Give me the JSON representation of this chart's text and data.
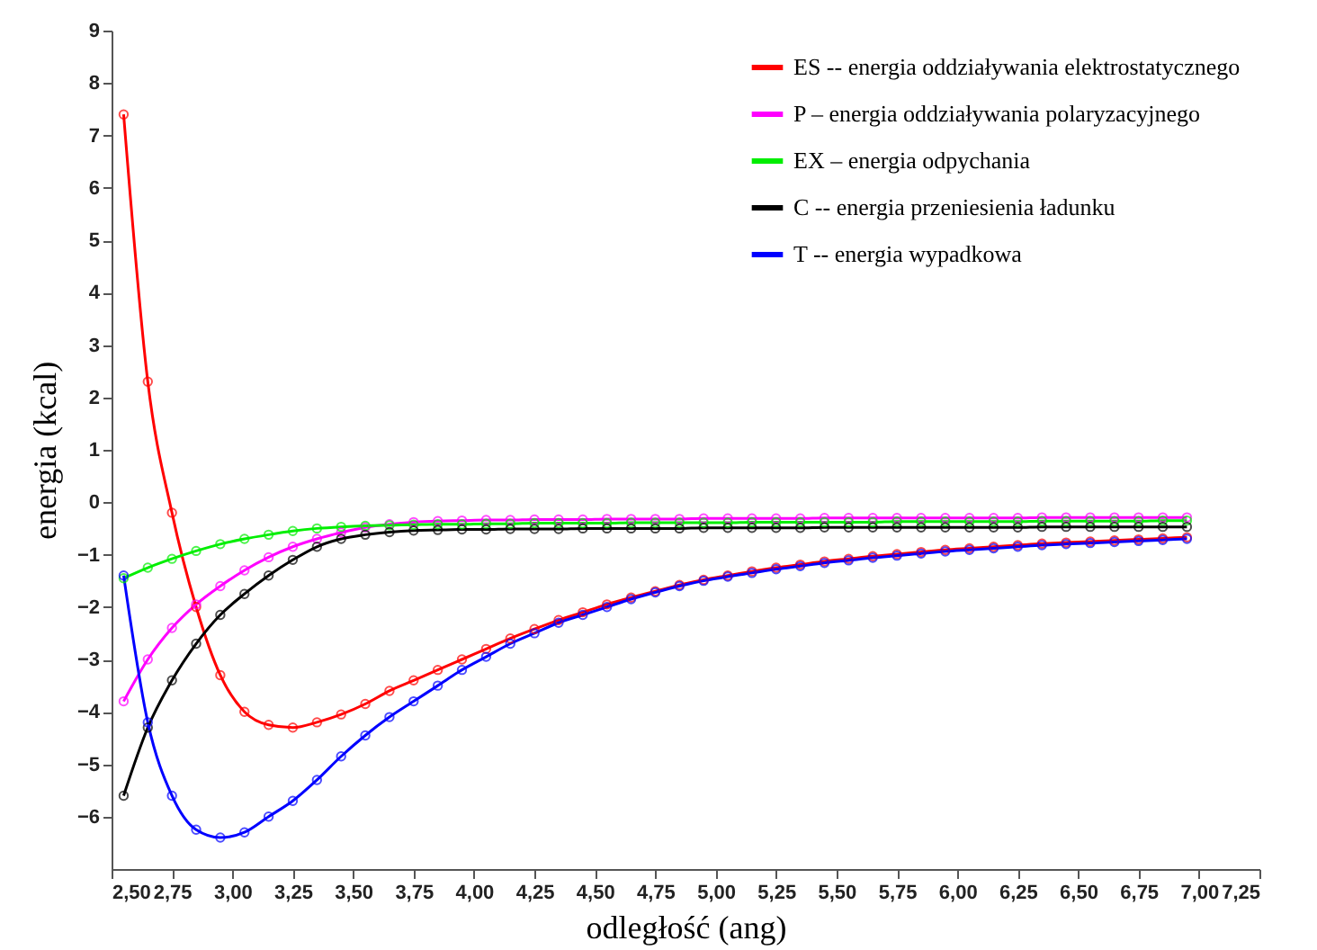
{
  "chart_data": {
    "type": "line",
    "xlabel": "odległość (ang)",
    "ylabel": "energia (kcal)",
    "x": [
      2.55,
      2.65,
      2.75,
      2.85,
      2.95,
      3.05,
      3.15,
      3.25,
      3.35,
      3.45,
      3.55,
      3.65,
      3.75,
      3.85,
      3.95,
      4.05,
      4.15,
      4.25,
      4.35,
      4.45,
      4.55,
      4.65,
      4.75,
      4.85,
      4.95,
      5.05,
      5.15,
      5.25,
      5.35,
      5.45,
      5.55,
      5.65,
      5.75,
      5.85,
      5.95,
      6.05,
      6.15,
      6.25,
      6.35,
      6.45,
      6.55,
      6.65,
      6.75,
      6.85,
      6.95
    ],
    "series": [
      {
        "name": "ES -- energia oddziaływania elektrostatycznego",
        "color": "#ff0000",
        "values": [
          7.4,
          2.3,
          -0.2,
          -2.0,
          -3.3,
          -4.0,
          -4.25,
          -4.3,
          -4.2,
          -4.05,
          -3.85,
          -3.6,
          -3.4,
          -3.2,
          -3.0,
          -2.8,
          -2.6,
          -2.42,
          -2.25,
          -2.1,
          -1.95,
          -1.82,
          -1.7,
          -1.58,
          -1.48,
          -1.4,
          -1.32,
          -1.25,
          -1.19,
          -1.13,
          -1.08,
          -1.03,
          -0.99,
          -0.95,
          -0.91,
          -0.88,
          -0.85,
          -0.82,
          -0.79,
          -0.77,
          -0.75,
          -0.73,
          -0.71,
          -0.69,
          -0.67
        ]
      },
      {
        "name": "P – energia oddziaływania polaryzacyjnego",
        "color": "#ff00ff",
        "values": [
          -3.8,
          -3.0,
          -2.4,
          -1.95,
          -1.6,
          -1.3,
          -1.05,
          -0.85,
          -0.7,
          -0.58,
          -0.48,
          -0.42,
          -0.38,
          -0.36,
          -0.35,
          -0.34,
          -0.34,
          -0.33,
          -0.33,
          -0.33,
          -0.32,
          -0.32,
          -0.32,
          -0.32,
          -0.31,
          -0.31,
          -0.31,
          -0.31,
          -0.31,
          -0.3,
          -0.3,
          -0.3,
          -0.3,
          -0.3,
          -0.3,
          -0.3,
          -0.3,
          -0.3,
          -0.29,
          -0.29,
          -0.29,
          -0.29,
          -0.29,
          -0.29,
          -0.29
        ]
      },
      {
        "name": "EX – energia odpychania",
        "color": "#00ee00",
        "values": [
          -1.45,
          -1.25,
          -1.08,
          -0.93,
          -0.8,
          -0.7,
          -0.62,
          -0.55,
          -0.5,
          -0.47,
          -0.45,
          -0.44,
          -0.43,
          -0.42,
          -0.42,
          -0.41,
          -0.41,
          -0.4,
          -0.4,
          -0.4,
          -0.4,
          -0.39,
          -0.39,
          -0.39,
          -0.39,
          -0.39,
          -0.38,
          -0.38,
          -0.38,
          -0.38,
          -0.38,
          -0.38,
          -0.37,
          -0.37,
          -0.37,
          -0.37,
          -0.37,
          -0.37,
          -0.36,
          -0.36,
          -0.36,
          -0.36,
          -0.36,
          -0.35,
          -0.35
        ]
      },
      {
        "name": "C -- energia przeniesienia ładunku",
        "color": "#000000",
        "values": [
          -5.6,
          -4.3,
          -3.4,
          -2.7,
          -2.15,
          -1.75,
          -1.4,
          -1.1,
          -0.85,
          -0.7,
          -0.62,
          -0.57,
          -0.54,
          -0.53,
          -0.52,
          -0.52,
          -0.51,
          -0.51,
          -0.51,
          -0.5,
          -0.5,
          -0.5,
          -0.5,
          -0.5,
          -0.49,
          -0.49,
          -0.49,
          -0.49,
          -0.49,
          -0.48,
          -0.48,
          -0.48,
          -0.48,
          -0.48,
          -0.48,
          -0.48,
          -0.48,
          -0.48,
          -0.47,
          -0.47,
          -0.47,
          -0.47,
          -0.47,
          -0.47,
          -0.47
        ]
      },
      {
        "name": "T -- energia wypadkowa",
        "color": "#0000ff",
        "values": [
          -1.4,
          -4.2,
          -5.6,
          -6.25,
          -6.4,
          -6.3,
          -6.0,
          -5.7,
          -5.3,
          -4.85,
          -4.45,
          -4.1,
          -3.8,
          -3.5,
          -3.2,
          -2.95,
          -2.7,
          -2.5,
          -2.3,
          -2.15,
          -2.0,
          -1.85,
          -1.72,
          -1.6,
          -1.5,
          -1.42,
          -1.35,
          -1.28,
          -1.22,
          -1.16,
          -1.11,
          -1.06,
          -1.02,
          -0.98,
          -0.94,
          -0.91,
          -0.88,
          -0.85,
          -0.82,
          -0.8,
          -0.78,
          -0.76,
          -0.74,
          -0.72,
          -0.7
        ]
      }
    ],
    "xlim": [
      2.5,
      7.25
    ],
    "ylim": [
      -7,
      9
    ],
    "xticks": [
      {
        "value": 2.5,
        "label": "2,50"
      },
      {
        "value": 2.75,
        "label": "2,75"
      },
      {
        "value": 3,
        "label": "3,00"
      },
      {
        "value": 3.25,
        "label": "3,25"
      },
      {
        "value": 3.5,
        "label": "3,50"
      },
      {
        "value": 3.75,
        "label": "3,75"
      },
      {
        "value": 4,
        "label": "4,00"
      },
      {
        "value": 4.25,
        "label": "4,25"
      },
      {
        "value": 4.5,
        "label": "4,50"
      },
      {
        "value": 4.75,
        "label": "4,75"
      },
      {
        "value": 5,
        "label": "5,00"
      },
      {
        "value": 5.25,
        "label": "5,25"
      },
      {
        "value": 5.5,
        "label": "5,50"
      },
      {
        "value": 5.75,
        "label": "5,75"
      },
      {
        "value": 6,
        "label": "6,00"
      },
      {
        "value": 6.25,
        "label": "6,25"
      },
      {
        "value": 6.5,
        "label": "6,50"
      },
      {
        "value": 6.75,
        "label": "6,75"
      },
      {
        "value": 7,
        "label": "7,00"
      },
      {
        "value": 7.25,
        "label": "7,25"
      }
    ],
    "yticks": [
      -6,
      -5,
      -4,
      -3,
      -2,
      -1,
      0,
      1,
      2,
      3,
      4,
      5,
      6,
      7,
      8,
      9
    ],
    "grid": false,
    "legend": "top right",
    "marker": "circle"
  }
}
